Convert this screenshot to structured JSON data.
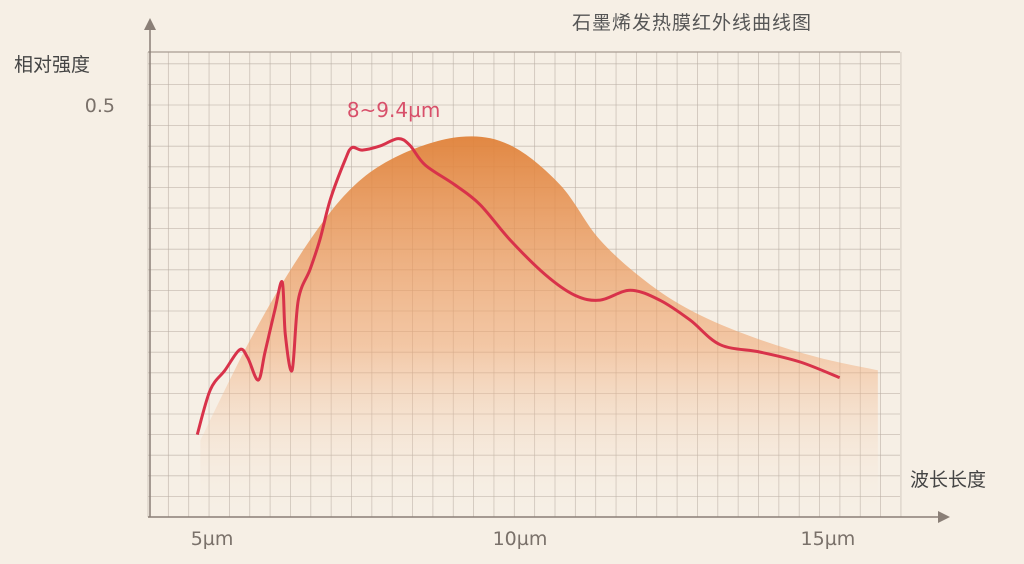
{
  "chart_data": {
    "type": "line",
    "title": "石墨烯发热膜红外线曲线图",
    "xlabel": "波长长度",
    "ylabel": "相对强度",
    "xlim": [
      3.96,
      16.17
    ],
    "ylim": [
      0,
      0.564
    ],
    "x_ticks": [
      {
        "value": 5,
        "label": "5µm"
      },
      {
        "value": 10,
        "label": "10µm"
      },
      {
        "value": 15,
        "label": "15µm"
      }
    ],
    "y_ticks": [
      {
        "value": 0.5,
        "label": "0.5"
      }
    ],
    "grid": true,
    "annotation": {
      "text": "8~9.4µm",
      "x": 8.0,
      "y": 0.49
    },
    "series": [
      {
        "kind": "line",
        "color": "#d8324a",
        "points": [
          [
            4.76,
            0.1
          ],
          [
            4.97,
            0.154
          ],
          [
            5.21,
            0.178
          ],
          [
            5.45,
            0.203
          ],
          [
            5.58,
            0.193
          ],
          [
            5.75,
            0.166
          ],
          [
            5.86,
            0.2
          ],
          [
            6.02,
            0.251
          ],
          [
            6.14,
            0.285
          ],
          [
            6.19,
            0.221
          ],
          [
            6.3,
            0.178
          ],
          [
            6.4,
            0.263
          ],
          [
            6.59,
            0.3
          ],
          [
            6.75,
            0.336
          ],
          [
            6.92,
            0.385
          ],
          [
            7.16,
            0.433
          ],
          [
            7.27,
            0.448
          ],
          [
            7.44,
            0.445
          ],
          [
            7.73,
            0.45
          ],
          [
            8.02,
            0.459
          ],
          [
            8.21,
            0.451
          ],
          [
            8.46,
            0.427
          ],
          [
            8.94,
            0.403
          ],
          [
            9.35,
            0.379
          ],
          [
            9.84,
            0.336
          ],
          [
            10.41,
            0.294
          ],
          [
            10.89,
            0.269
          ],
          [
            11.3,
            0.263
          ],
          [
            11.79,
            0.275
          ],
          [
            12.27,
            0.263
          ],
          [
            12.76,
            0.239
          ],
          [
            13.25,
            0.209
          ],
          [
            13.9,
            0.2
          ],
          [
            14.55,
            0.188
          ],
          [
            15.19,
            0.169
          ]
        ]
      },
      {
        "kind": "area",
        "color": "#e38a45",
        "points": [
          [
            4.81,
            0.093
          ],
          [
            5.62,
            0.215
          ],
          [
            6.43,
            0.318
          ],
          [
            7.24,
            0.397
          ],
          [
            8.05,
            0.439
          ],
          [
            9.03,
            0.461
          ],
          [
            9.84,
            0.451
          ],
          [
            10.65,
            0.403
          ],
          [
            11.3,
            0.336
          ],
          [
            12.11,
            0.282
          ],
          [
            12.92,
            0.245
          ],
          [
            13.9,
            0.215
          ],
          [
            14.87,
            0.193
          ],
          [
            15.81,
            0.178
          ]
        ]
      }
    ]
  }
}
